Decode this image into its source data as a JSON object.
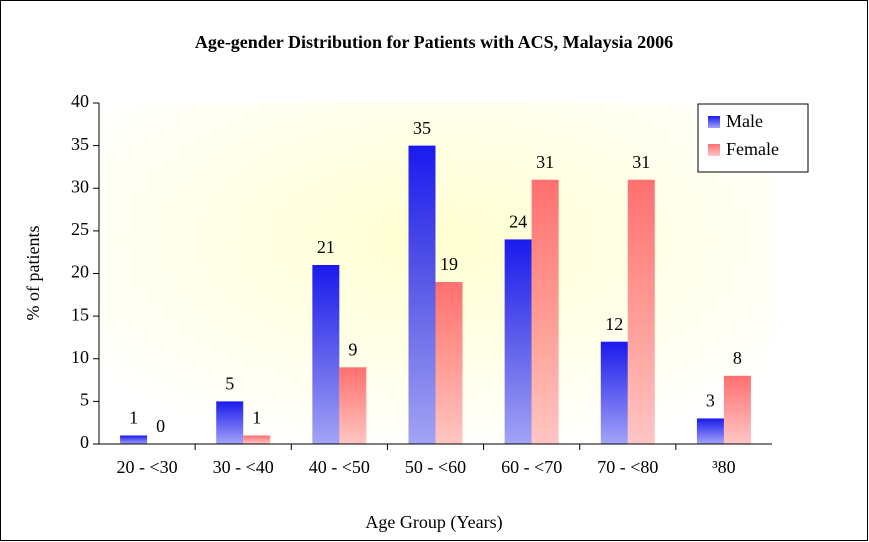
{
  "chart_data": {
    "type": "bar",
    "title": "Age-gender Distribution for Patients with ACS, Malaysia 2006",
    "xlabel": "Age Group (Years)",
    "ylabel": "% of patients",
    "categories": [
      "20 - <30",
      "30 - <40",
      "40 - <50",
      "50 - <60",
      "60 - <70",
      "70 - <80",
      "³80"
    ],
    "series": [
      {
        "name": "Male",
        "color": "#1a1aee",
        "values": [
          1,
          5,
          21,
          35,
          24,
          12,
          3
        ]
      },
      {
        "name": "Female",
        "color": "#ff7070",
        "values": [
          0,
          1,
          9,
          19,
          31,
          31,
          8
        ]
      }
    ],
    "ylim": [
      0,
      40
    ],
    "yticks": [
      0,
      5,
      10,
      15,
      20,
      25,
      30,
      35,
      40
    ],
    "legend": "upper right"
  }
}
